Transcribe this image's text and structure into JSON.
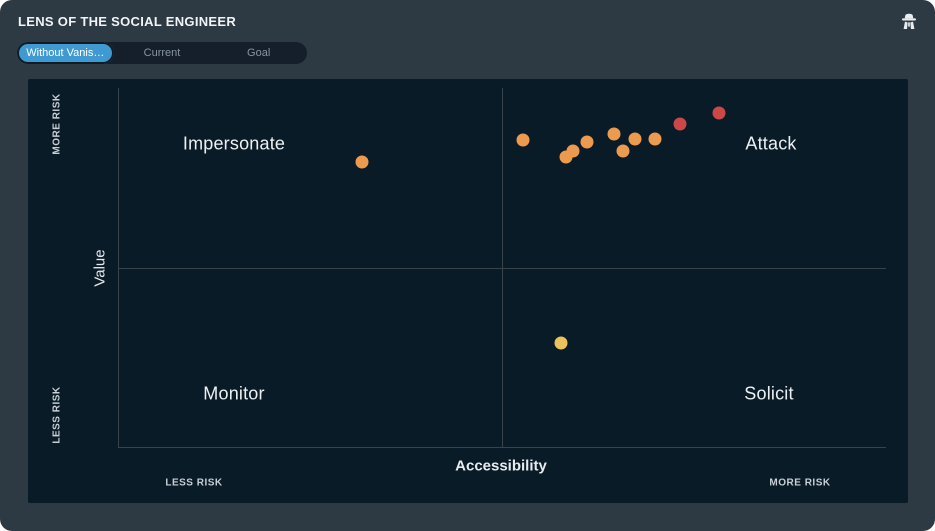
{
  "header": {
    "title": "LENS OF THE SOCIAL ENGINEER"
  },
  "tabs": {
    "items": [
      {
        "label": "Without Vanis…",
        "active": true
      },
      {
        "label": "Current",
        "active": false
      },
      {
        "label": "Goal",
        "active": false
      }
    ]
  },
  "chart": {
    "quadrants": {
      "top_left": "Impersonate",
      "top_right": "Attack",
      "bottom_left": "Monitor",
      "bottom_right": "Solicit"
    },
    "y_axis": {
      "label": "Value",
      "top_label": "MORE RISK",
      "bottom_label": "LESS RISK"
    },
    "x_axis": {
      "label": "Accessibility",
      "left_label": "LESS RISK",
      "right_label": "MORE RISK"
    }
  },
  "colors": {
    "accent_blue": "#3F9AD2",
    "surface": "#2D3A43",
    "card": "#0A1B28",
    "grid_line": "#39434B",
    "dot_orange": "#EC9A4E",
    "dot_red": "#CB4748",
    "dot_yellow": "#EAC35D"
  },
  "chart_data": {
    "type": "scatter",
    "title": "LENS OF THE SOCIAL ENGINEER",
    "xlabel": "Accessibility",
    "ylabel": "Value",
    "x_range_labels": [
      "LESS RISK",
      "MORE RISK"
    ],
    "y_range_labels": [
      "LESS RISK",
      "MORE RISK"
    ],
    "quadrant_labels": [
      "Impersonate",
      "Attack",
      "Monitor",
      "Solicit"
    ],
    "axis_range": [
      0,
      1
    ],
    "grid": "quadrant-midlines-only",
    "legend": "none",
    "points": [
      {
        "x": 0.317,
        "y": 0.794,
        "color": "#EC9A4E",
        "quadrant": "Impersonate"
      },
      {
        "x": 0.527,
        "y": 0.855,
        "color": "#EC9A4E",
        "quadrant": "Attack"
      },
      {
        "x": 0.583,
        "y": 0.808,
        "color": "#EC9A4E",
        "quadrant": "Attack"
      },
      {
        "x": 0.592,
        "y": 0.824,
        "color": "#EC9A4E",
        "quadrant": "Attack"
      },
      {
        "x": 0.61,
        "y": 0.85,
        "color": "#EC9A4E",
        "quadrant": "Attack"
      },
      {
        "x": 0.645,
        "y": 0.872,
        "color": "#EC9A4E",
        "quadrant": "Attack"
      },
      {
        "x": 0.657,
        "y": 0.824,
        "color": "#EC9A4E",
        "quadrant": "Attack"
      },
      {
        "x": 0.673,
        "y": 0.858,
        "color": "#EC9A4E",
        "quadrant": "Attack"
      },
      {
        "x": 0.699,
        "y": 0.858,
        "color": "#EC9A4E",
        "quadrant": "Attack"
      },
      {
        "x": 0.731,
        "y": 0.9,
        "color": "#CB4748",
        "quadrant": "Attack"
      },
      {
        "x": 0.782,
        "y": 0.93,
        "color": "#CB4748",
        "quadrant": "Attack"
      },
      {
        "x": 0.576,
        "y": 0.29,
        "color": "#EAC35D",
        "quadrant": "Solicit"
      }
    ]
  }
}
